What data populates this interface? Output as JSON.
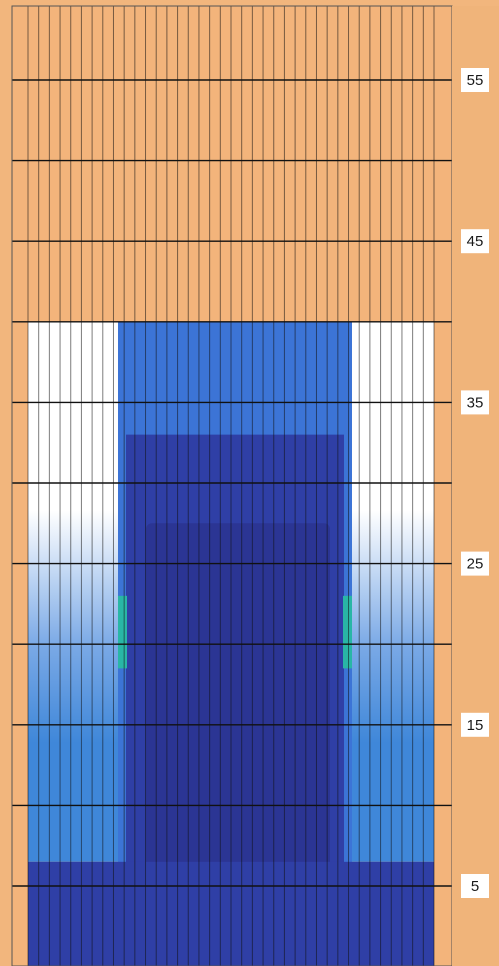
{
  "chart_data": {
    "type": "heatmap",
    "title": "",
    "xlabel": "",
    "ylabel": "",
    "ylim": [
      1,
      60
    ],
    "y_ticks": [
      {
        "value": 55,
        "label": "55"
      },
      {
        "value": 45,
        "label": "45"
      },
      {
        "value": 35,
        "label": "35"
      },
      {
        "value": 25,
        "label": "25"
      },
      {
        "value": 15,
        "label": "15"
      },
      {
        "value": 5,
        "label": "5"
      }
    ],
    "grid": true,
    "colors": {
      "top_region": "#f3b47b",
      "outer_fill_top": "#ffffff",
      "outer_fill_mid": "#7aa9e6",
      "outer_fill_low": "#3f87d9",
      "block_top": "#3c74d6",
      "block_dark": "#2f3fa6",
      "block_core": "#2b3594",
      "accent_strip": "#29b6a6",
      "gridline": "#111111",
      "right_strip": "#f0b47a"
    }
  }
}
